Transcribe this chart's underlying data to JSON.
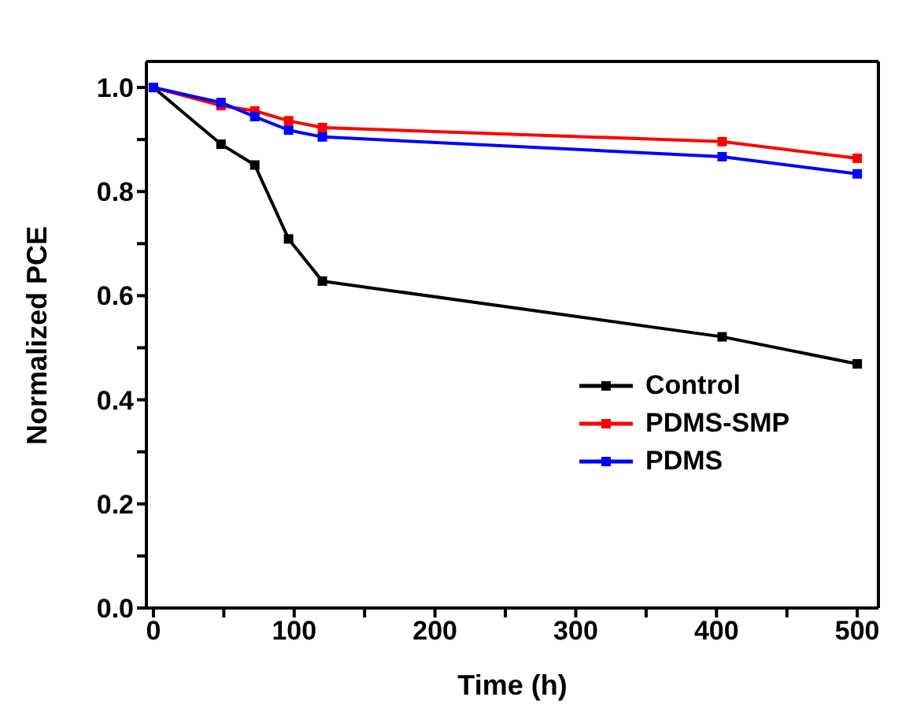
{
  "chart_data": {
    "type": "line",
    "xlabel": "Time (h)",
    "ylabel": "Normalized PCE",
    "series": [
      {
        "name": "Control",
        "color": "#000000",
        "x": [
          0,
          48,
          72,
          96,
          120,
          404,
          500
        ],
        "values": [
          1.0,
          0.891,
          0.851,
          0.709,
          0.628,
          0.521,
          0.469
        ]
      },
      {
        "name": "PDMS-SMP",
        "color": "#ff0000",
        "x": [
          0,
          48,
          72,
          96,
          120,
          404,
          500
        ],
        "values": [
          1.0,
          0.965,
          0.955,
          0.936,
          0.923,
          0.896,
          0.864
        ]
      },
      {
        "name": "PDMS",
        "color": "#0000ff",
        "x": [
          0,
          48,
          72,
          96,
          120,
          404,
          500
        ],
        "values": [
          1.0,
          0.971,
          0.944,
          0.918,
          0.905,
          0.867,
          0.834
        ]
      }
    ],
    "xlim": [
      -5,
      515
    ],
    "xticks": [
      0,
      {
        "value": 50,
        "label": null
      },
      100,
      {
        "value": 150,
        "label": null
      },
      200,
      {
        "value": 250,
        "label": null
      },
      300,
      {
        "value": 350,
        "label": null
      },
      400,
      {
        "value": 450,
        "label": null
      },
      500
    ],
    "ylim": [
      0,
      1.05
    ],
    "yticks": [
      {
        "value": 0,
        "label": "0.0"
      },
      {
        "value": 0.1,
        "label": null
      },
      0.2,
      {
        "value": 0.3,
        "label": null
      },
      0.4,
      {
        "value": 0.5,
        "label": null
      },
      0.6,
      {
        "value": 0.7,
        "label": null
      },
      0.8,
      {
        "value": 0.9,
        "label": null
      },
      {
        "value": 1,
        "label": "1.0"
      }
    ],
    "legend": "right",
    "marker": "square",
    "line_style": "solid"
  }
}
